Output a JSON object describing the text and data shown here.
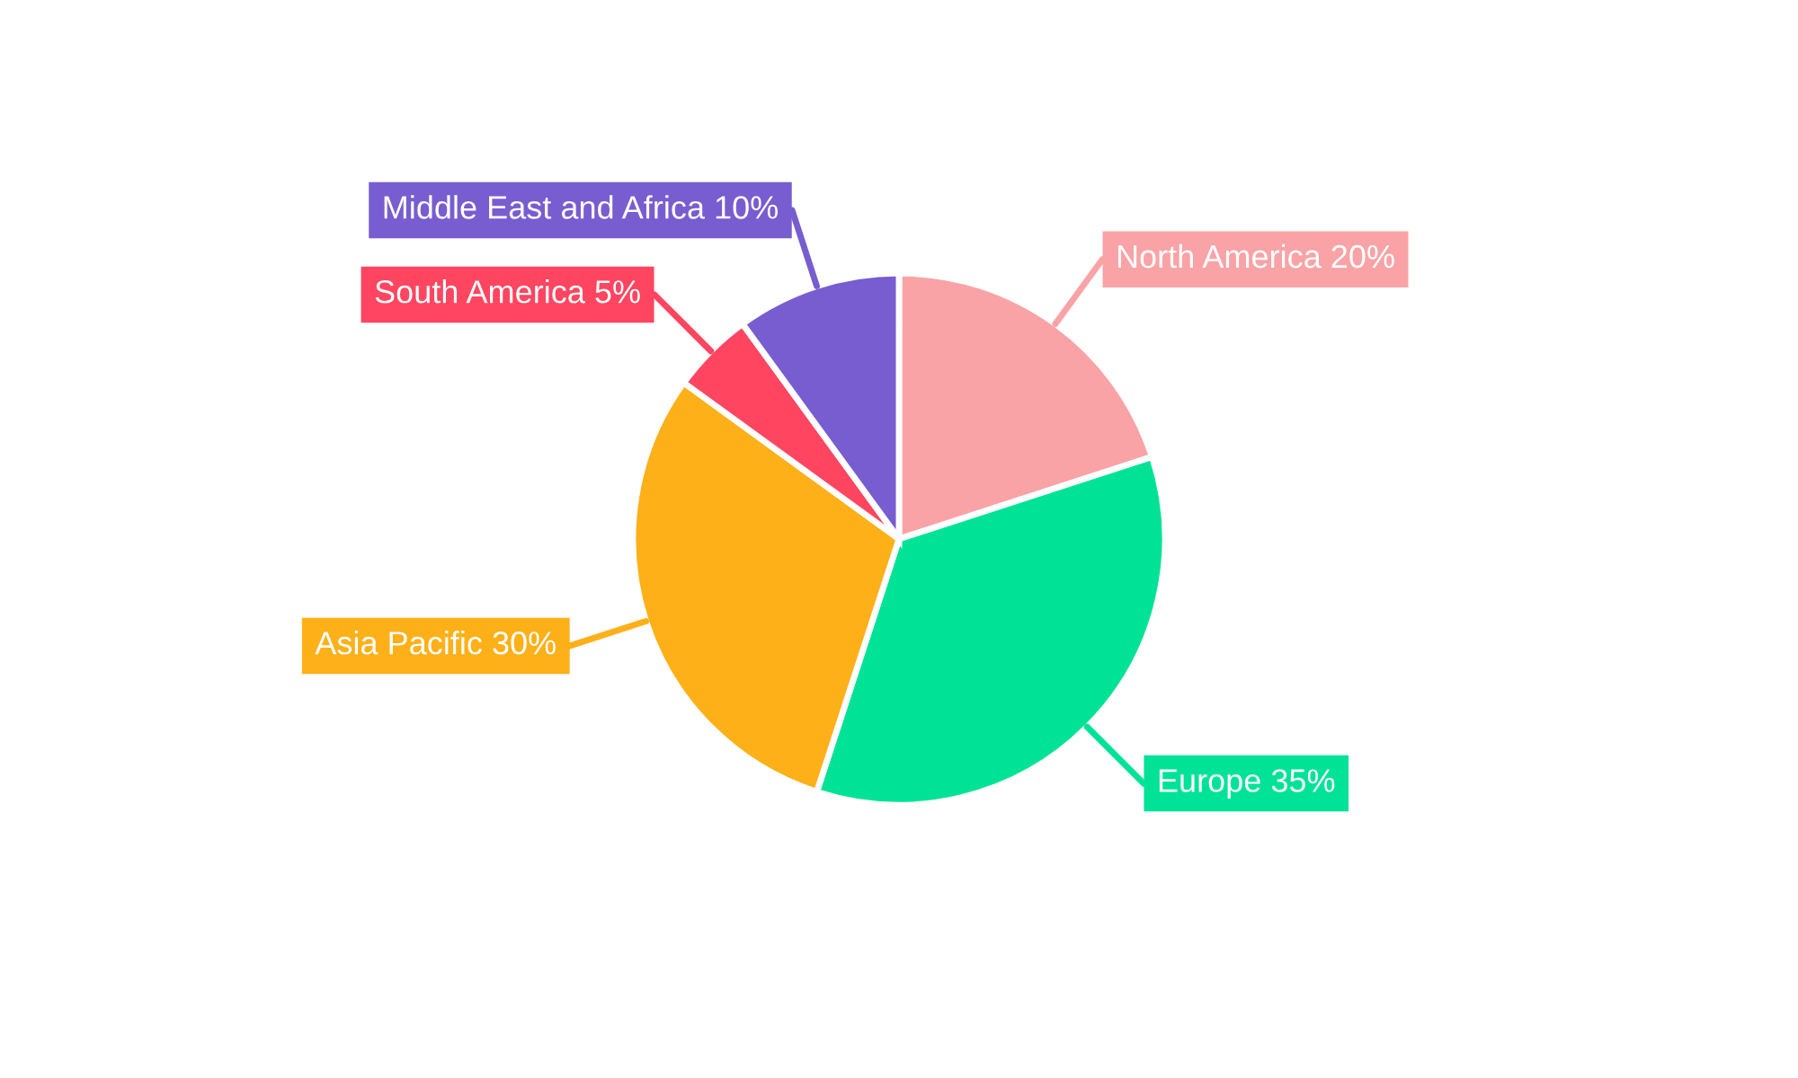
{
  "chart_data": {
    "type": "pie",
    "categories": [
      "North America",
      "Europe",
      "Asia Pacific",
      "South America",
      "Middle East and Africa"
    ],
    "values": [
      20,
      35,
      30,
      5,
      10
    ],
    "value_labels": [
      "20%",
      "35%",
      "30%",
      "5%",
      "10%"
    ],
    "colors": [
      "#f9a3a6",
      "#00e396",
      "#feb019",
      "#ff4560",
      "#775dd0"
    ],
    "legend": false
  }
}
